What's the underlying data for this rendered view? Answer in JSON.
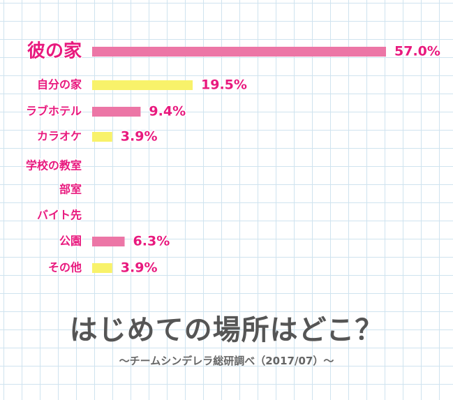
{
  "chart_data": {
    "type": "bar",
    "orientation": "horizontal",
    "title": "はじめての場所はどこ？",
    "subtitle": "～チームシンデレラ総研調べ（2017/07）～",
    "categories": [
      "彼の家",
      "自分の家",
      "ラブホテル",
      "カラオケ",
      "学校の教室",
      "部室",
      "バイト先",
      "公園",
      "その他"
    ],
    "values": [
      57.0,
      19.5,
      9.4,
      3.9,
      null,
      null,
      null,
      6.3,
      3.9
    ],
    "value_labels": [
      "57.0%",
      "19.5%",
      "9.4%",
      "3.9%",
      "",
      "",
      "",
      "6.3%",
      "3.9%"
    ],
    "bar_colors": [
      "#ec76a6",
      "#f8f26a",
      "#ec76a6",
      "#f8f26a",
      "#ec76a6",
      "#f8f26a",
      "#ec76a6",
      "#ec76a6",
      "#f8f26a"
    ],
    "label_color": "#e8197e",
    "xlim": [
      0,
      57.0
    ],
    "grid": true,
    "legend": "none"
  }
}
